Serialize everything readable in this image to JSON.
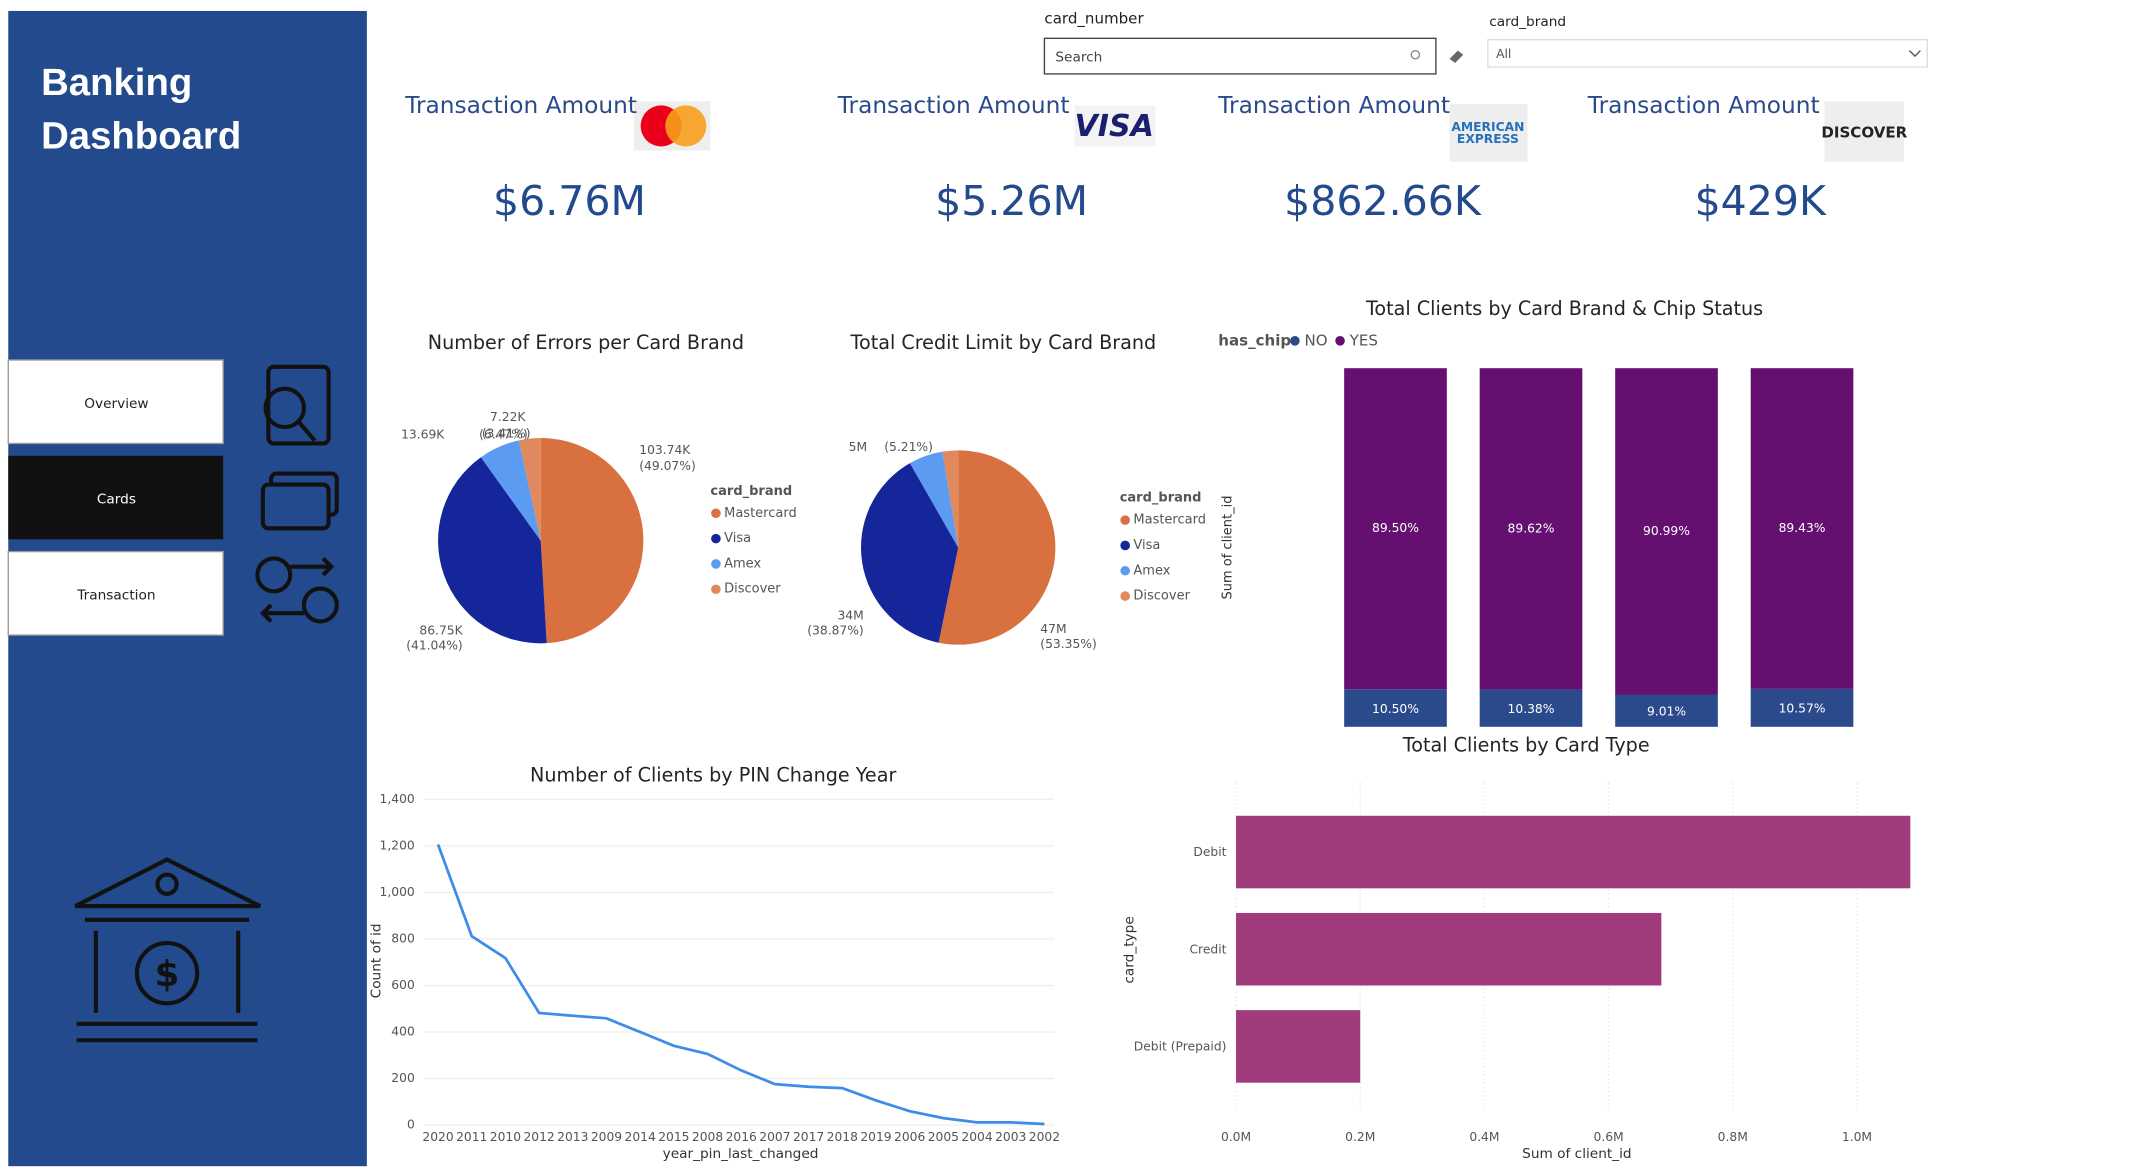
{
  "sidebar": {
    "title_lines": [
      "Banking",
      "Dashboard"
    ],
    "nav": [
      "Overview",
      "Cards",
      "Transaction"
    ]
  },
  "filters": {
    "card_number": {
      "label": "card_number",
      "placeholder": "Search"
    },
    "card_brand": {
      "label": "card_brand",
      "selected": "All"
    }
  },
  "kpis": [
    {
      "title": "Transaction Amount",
      "value": "$6.76M"
    },
    {
      "title": "Transaction Amount",
      "value": "$5.26M",
      "logo": "VISA"
    },
    {
      "title": "Transaction Amount",
      "value": "$862.66K",
      "logo": [
        "AMERICAN",
        "EXPRESS"
      ]
    },
    {
      "title": "Transaction Amount",
      "value": "$429K",
      "logo": "DISCOVER"
    }
  ],
  "chart_data": [
    {
      "type": "pie",
      "title": "Number of Errors per Card Brand",
      "legend_title": "card_brand",
      "categories": [
        "Mastercard",
        "Visa",
        "Amex",
        "Discover"
      ],
      "values": [
        103740,
        86750,
        13690,
        7220
      ],
      "value_labels": [
        "103.74K",
        "86.75K",
        "13.69K",
        "7.22K"
      ],
      "percent_labels": [
        "(49.07%)",
        "(41.04%)",
        "(6.47%)",
        "(3.41%)"
      ],
      "colors": [
        "#d9703f",
        "#15269a",
        "#5b9cf2",
        "#e0895e"
      ]
    },
    {
      "type": "pie",
      "title": "Total Credit Limit by Card Brand",
      "legend_title": "card_brand",
      "categories": [
        "Mastercard",
        "Visa",
        "Amex",
        "Discover"
      ],
      "values": [
        47000000,
        34000000,
        5000000,
        2300000
      ],
      "value_labels": [
        "47M",
        "34M",
        "5M",
        null
      ],
      "percent_labels": [
        "(53.35%)",
        "(38.87%)",
        "(5.21%)",
        null
      ],
      "colors": [
        "#d9703f",
        "#15269a",
        "#5b9cf2",
        "#e0895e"
      ]
    },
    {
      "type": "stacked_bar",
      "title": "Total Clients by Card Brand & Chip Status",
      "legend_title": "has_chip",
      "y_label": "Sum of client_id",
      "categories": [
        null,
        null,
        null,
        null
      ],
      "ylim": [
        0,
        100
      ],
      "series": [
        {
          "name": "NO",
          "color": "#2b4a8b",
          "values": [
            10.5,
            10.38,
            9.01,
            10.57
          ],
          "value_labels": [
            "10.50%",
            "10.38%",
            "9.01%",
            "10.57%"
          ]
        },
        {
          "name": "YES",
          "color": "#651070",
          "values": [
            89.5,
            89.62,
            90.99,
            89.43
          ],
          "value_labels": [
            "89.50%",
            "89.62%",
            "90.99%",
            "89.43%"
          ]
        }
      ]
    },
    {
      "type": "hbar",
      "title": "Total Clients by Card Type",
      "x_label": "Sum of client_id",
      "y_label": "card_type",
      "categories": [
        "Debit",
        "Credit",
        "Debit (Prepaid)"
      ],
      "values": [
        1086000,
        685000,
        200000
      ],
      "color": "#a03c7c",
      "xlim": [
        0,
        1100000
      ],
      "xticks": [
        {
          "value": 0,
          "label": "0.0M"
        },
        {
          "value": 200000,
          "label": "0.2M"
        },
        {
          "value": 400000,
          "label": "0.4M"
        },
        {
          "value": 600000,
          "label": "0.6M"
        },
        {
          "value": 800000,
          "label": "0.8M"
        },
        {
          "value": 1000000,
          "label": "1.0M"
        }
      ],
      "grid": true
    },
    {
      "type": "line",
      "title": "Number of Clients by PIN Change Year",
      "x_label": "year_pin_last_changed",
      "y_label": "Count of id",
      "categories": [
        "2020",
        "2011",
        "2010",
        "2012",
        "2013",
        "2009",
        "2014",
        "2015",
        "2008",
        "2016",
        "2007",
        "2017",
        "2018",
        "2019",
        "2006",
        "2005",
        "2004",
        "2003",
        "2002"
      ],
      "values": [
        1206,
        812,
        718,
        482,
        470,
        459,
        400,
        341,
        306,
        235,
        176,
        165,
        159,
        106,
        60,
        30,
        12,
        12,
        5
      ],
      "color": "#3d8ce8",
      "ylim": [
        0,
        1400
      ],
      "yticks": [
        0,
        200,
        400,
        600,
        800,
        {
          "value": 1000,
          "label": "1,000"
        },
        {
          "value": 1200,
          "label": "1,200"
        },
        {
          "value": 1400,
          "label": "1,400"
        }
      ]
    }
  ]
}
